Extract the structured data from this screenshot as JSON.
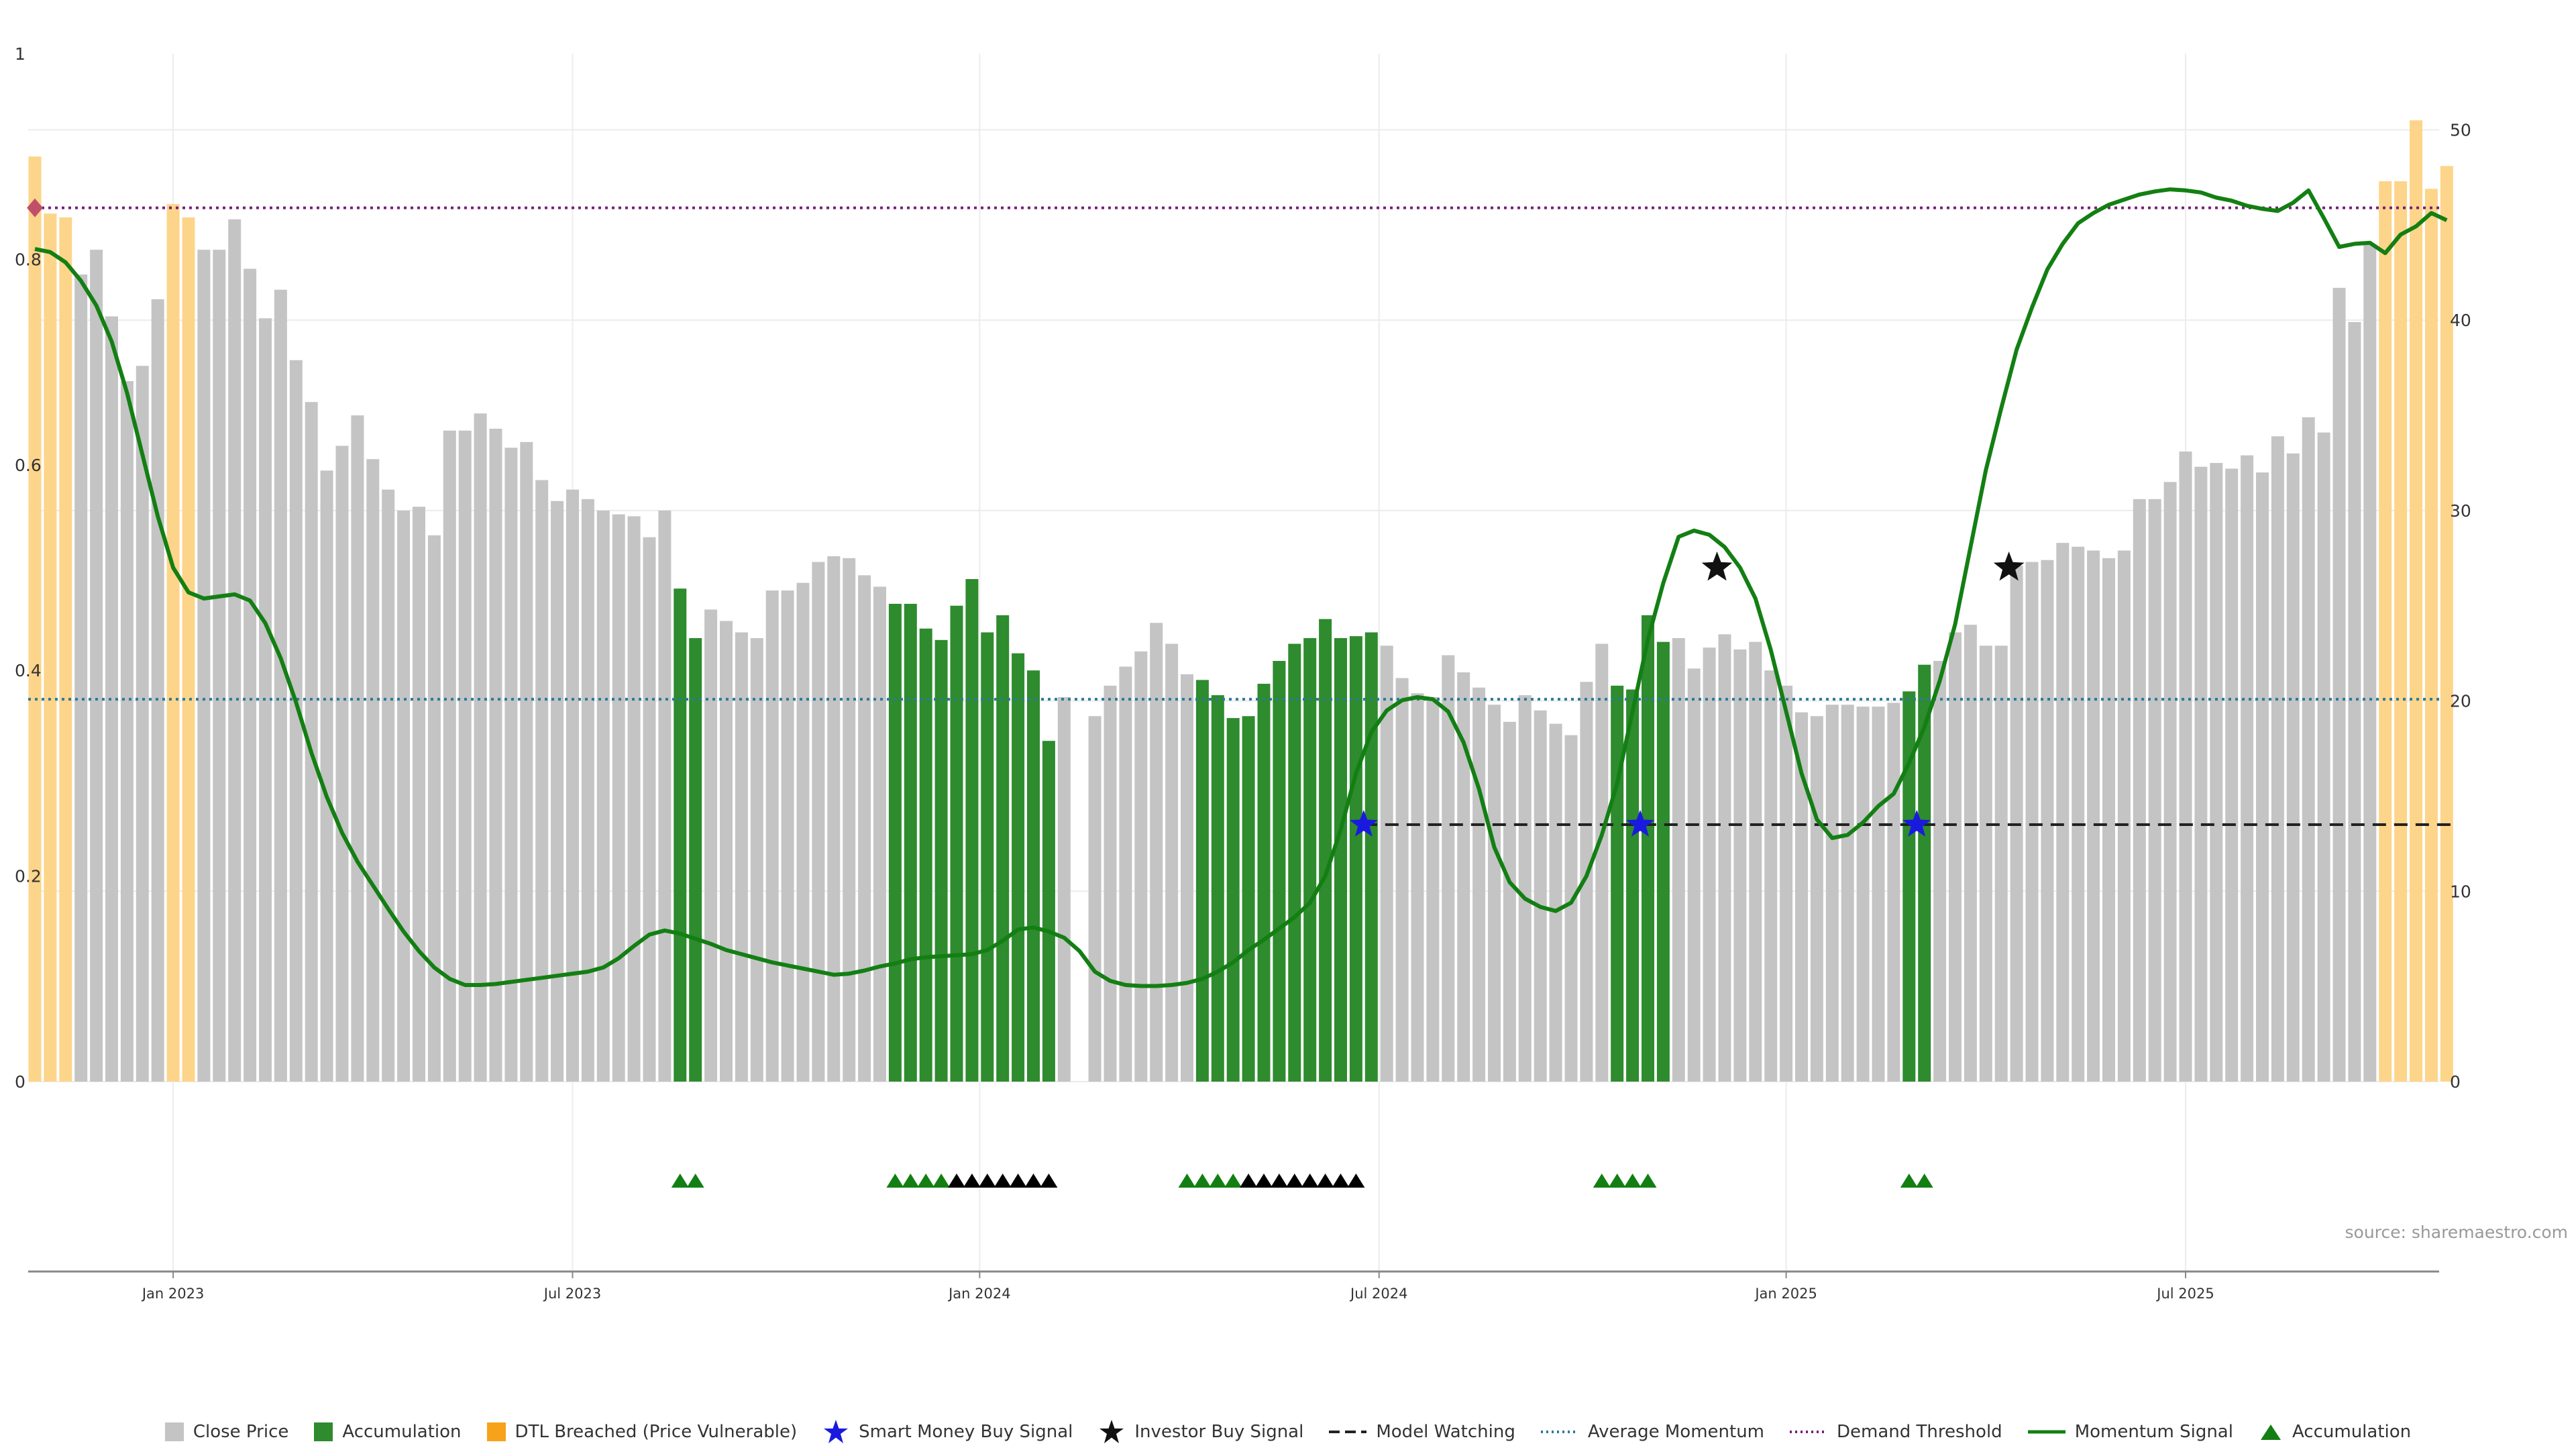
{
  "source_note": "source: sharemaestro.com",
  "legend": {
    "close_price": "Close Price",
    "accumulation": "Accumulation",
    "dtl_breached": "DTL Breached (Price Vulnerable)",
    "smart_money": "Smart Money Buy Signal",
    "investor_buy": "Investor Buy Signal",
    "model_watching": "Model Watching",
    "avg_momentum": "Average Momentum",
    "demand_threshold": "Demand Threshold",
    "momentum_signal": "Momentum Signal",
    "accumulation_marker": "Accumulation"
  },
  "chart_data": {
    "type": "bar",
    "colors": {
      "close": "#c4c4c4",
      "accumulation": "#2e8b2e",
      "dtl": "#fdd58a",
      "momentum": "#137f13",
      "avg_momentum": "#2a7a9a",
      "demand": "#7a1f7a",
      "watching": "#222222",
      "smart_money": "#1a1adf",
      "investor": "#111111",
      "grid": "#ececec"
    },
    "y_left": {
      "ylim": [
        0,
        1
      ],
      "ticks": [
        "0",
        "0.2",
        "0.4",
        "0.6",
        "0.8",
        "1"
      ]
    },
    "y_right": {
      "ylim": [
        0,
        54
      ],
      "ticks": [
        "0",
        "10",
        "20",
        "30",
        "40",
        "50"
      ]
    },
    "x_ticks": [
      {
        "label": "Jan 2023",
        "index": 9
      },
      {
        "label": "Jul 2023",
        "index": 35
      },
      {
        "label": "Jan 2024",
        "index": 61.5
      },
      {
        "label": "Jul 2024",
        "index": 87.5
      },
      {
        "label": "Jan 2025",
        "index": 114
      },
      {
        "label": "Jul 2025",
        "index": 140
      }
    ],
    "bars": [
      {
        "v": 48.6,
        "t": "d"
      },
      {
        "v": 45.6,
        "t": "d"
      },
      {
        "v": 45.4,
        "t": "d"
      },
      {
        "v": 42.4,
        "t": "c"
      },
      {
        "v": 43.7,
        "t": "c"
      },
      {
        "v": 40.2,
        "t": "c"
      },
      {
        "v": 36.8,
        "t": "c"
      },
      {
        "v": 37.6,
        "t": "c"
      },
      {
        "v": 41.1,
        "t": "c"
      },
      {
        "v": 46.1,
        "t": "d"
      },
      {
        "v": 45.4,
        "t": "d"
      },
      {
        "v": 43.7,
        "t": "c"
      },
      {
        "v": 43.7,
        "t": "c"
      },
      {
        "v": 45.3,
        "t": "c"
      },
      {
        "v": 42.7,
        "t": "c"
      },
      {
        "v": 40.1,
        "t": "c"
      },
      {
        "v": 41.6,
        "t": "c"
      },
      {
        "v": 37.9,
        "t": "c"
      },
      {
        "v": 35.7,
        "t": "c"
      },
      {
        "v": 32.1,
        "t": "c"
      },
      {
        "v": 33.4,
        "t": "c"
      },
      {
        "v": 35.0,
        "t": "c"
      },
      {
        "v": 32.7,
        "t": "c"
      },
      {
        "v": 31.1,
        "t": "c"
      },
      {
        "v": 30.0,
        "t": "c"
      },
      {
        "v": 30.2,
        "t": "c"
      },
      {
        "v": 28.7,
        "t": "c"
      },
      {
        "v": 34.2,
        "t": "c"
      },
      {
        "v": 34.2,
        "t": "c"
      },
      {
        "v": 35.1,
        "t": "c"
      },
      {
        "v": 34.3,
        "t": "c"
      },
      {
        "v": 33.3,
        "t": "c"
      },
      {
        "v": 33.6,
        "t": "c"
      },
      {
        "v": 31.6,
        "t": "c"
      },
      {
        "v": 30.5,
        "t": "c"
      },
      {
        "v": 31.1,
        "t": "c"
      },
      {
        "v": 30.6,
        "t": "c"
      },
      {
        "v": 30.0,
        "t": "c"
      },
      {
        "v": 29.8,
        "t": "c"
      },
      {
        "v": 29.7,
        "t": "c"
      },
      {
        "v": 28.6,
        "t": "c"
      },
      {
        "v": 30.0,
        "t": "c"
      },
      {
        "v": 25.9,
        "t": "a"
      },
      {
        "v": 23.3,
        "t": "a"
      },
      {
        "v": 24.8,
        "t": "c"
      },
      {
        "v": 24.2,
        "t": "c"
      },
      {
        "v": 23.6,
        "t": "c"
      },
      {
        "v": 23.3,
        "t": "c"
      },
      {
        "v": 25.8,
        "t": "c"
      },
      {
        "v": 25.8,
        "t": "c"
      },
      {
        "v": 26.2,
        "t": "c"
      },
      {
        "v": 27.3,
        "t": "c"
      },
      {
        "v": 27.6,
        "t": "c"
      },
      {
        "v": 27.5,
        "t": "c"
      },
      {
        "v": 26.6,
        "t": "c"
      },
      {
        "v": 26.0,
        "t": "c"
      },
      {
        "v": 25.1,
        "t": "a"
      },
      {
        "v": 25.1,
        "t": "a"
      },
      {
        "v": 23.8,
        "t": "a"
      },
      {
        "v": 23.2,
        "t": "a"
      },
      {
        "v": 25.0,
        "t": "a"
      },
      {
        "v": 26.4,
        "t": "a"
      },
      {
        "v": 23.6,
        "t": "a"
      },
      {
        "v": 24.5,
        "t": "a"
      },
      {
        "v": 22.5,
        "t": "a"
      },
      {
        "v": 21.6,
        "t": "a"
      },
      {
        "v": 17.9,
        "t": "a"
      },
      {
        "v": 20.2,
        "t": "c"
      },
      {
        "v": 0,
        "t": "c"
      },
      {
        "v": 19.2,
        "t": "c"
      },
      {
        "v": 20.8,
        "t": "c"
      },
      {
        "v": 21.8,
        "t": "c"
      },
      {
        "v": 22.6,
        "t": "c"
      },
      {
        "v": 24.1,
        "t": "c"
      },
      {
        "v": 23.0,
        "t": "c"
      },
      {
        "v": 21.4,
        "t": "c"
      },
      {
        "v": 21.1,
        "t": "a"
      },
      {
        "v": 20.3,
        "t": "a"
      },
      {
        "v": 19.1,
        "t": "a"
      },
      {
        "v": 19.2,
        "t": "a"
      },
      {
        "v": 20.9,
        "t": "a"
      },
      {
        "v": 22.1,
        "t": "a"
      },
      {
        "v": 23.0,
        "t": "a"
      },
      {
        "v": 23.3,
        "t": "a"
      },
      {
        "v": 24.3,
        "t": "a"
      },
      {
        "v": 23.3,
        "t": "a"
      },
      {
        "v": 23.4,
        "t": "a"
      },
      {
        "v": 23.6,
        "t": "a"
      },
      {
        "v": 22.9,
        "t": "c"
      },
      {
        "v": 21.2,
        "t": "c"
      },
      {
        "v": 20.4,
        "t": "c"
      },
      {
        "v": 20.2,
        "t": "c"
      },
      {
        "v": 22.4,
        "t": "c"
      },
      {
        "v": 21.5,
        "t": "c"
      },
      {
        "v": 20.7,
        "t": "c"
      },
      {
        "v": 19.8,
        "t": "c"
      },
      {
        "v": 18.9,
        "t": "c"
      },
      {
        "v": 20.3,
        "t": "c"
      },
      {
        "v": 19.5,
        "t": "c"
      },
      {
        "v": 18.8,
        "t": "c"
      },
      {
        "v": 18.2,
        "t": "c"
      },
      {
        "v": 21.0,
        "t": "c"
      },
      {
        "v": 23.0,
        "t": "c"
      },
      {
        "v": 20.8,
        "t": "a"
      },
      {
        "v": 20.6,
        "t": "a"
      },
      {
        "v": 24.5,
        "t": "a"
      },
      {
        "v": 23.1,
        "t": "a"
      },
      {
        "v": 23.3,
        "t": "c"
      },
      {
        "v": 21.7,
        "t": "c"
      },
      {
        "v": 22.8,
        "t": "c"
      },
      {
        "v": 23.5,
        "t": "c"
      },
      {
        "v": 22.7,
        "t": "c"
      },
      {
        "v": 23.1,
        "t": "c"
      },
      {
        "v": 21.6,
        "t": "c"
      },
      {
        "v": 20.8,
        "t": "c"
      },
      {
        "v": 19.4,
        "t": "c"
      },
      {
        "v": 19.2,
        "t": "c"
      },
      {
        "v": 19.8,
        "t": "c"
      },
      {
        "v": 19.8,
        "t": "c"
      },
      {
        "v": 19.7,
        "t": "c"
      },
      {
        "v": 19.7,
        "t": "c"
      },
      {
        "v": 19.9,
        "t": "c"
      },
      {
        "v": 20.5,
        "t": "a"
      },
      {
        "v": 21.9,
        "t": "a"
      },
      {
        "v": 22.1,
        "t": "c"
      },
      {
        "v": 23.6,
        "t": "c"
      },
      {
        "v": 24.0,
        "t": "c"
      },
      {
        "v": 22.9,
        "t": "c"
      },
      {
        "v": 22.9,
        "t": "c"
      },
      {
        "v": 27.1,
        "t": "c"
      },
      {
        "v": 27.3,
        "t": "c"
      },
      {
        "v": 27.4,
        "t": "c"
      },
      {
        "v": 28.3,
        "t": "c"
      },
      {
        "v": 28.1,
        "t": "c"
      },
      {
        "v": 27.9,
        "t": "c"
      },
      {
        "v": 27.5,
        "t": "c"
      },
      {
        "v": 27.9,
        "t": "c"
      },
      {
        "v": 30.6,
        "t": "c"
      },
      {
        "v": 30.6,
        "t": "c"
      },
      {
        "v": 31.5,
        "t": "c"
      },
      {
        "v": 33.1,
        "t": "c"
      },
      {
        "v": 32.3,
        "t": "c"
      },
      {
        "v": 32.5,
        "t": "c"
      },
      {
        "v": 32.2,
        "t": "c"
      },
      {
        "v": 32.9,
        "t": "c"
      },
      {
        "v": 32.0,
        "t": "c"
      },
      {
        "v": 33.9,
        "t": "c"
      },
      {
        "v": 33.0,
        "t": "c"
      },
      {
        "v": 34.9,
        "t": "c"
      },
      {
        "v": 34.1,
        "t": "c"
      },
      {
        "v": 41.7,
        "t": "c"
      },
      {
        "v": 39.9,
        "t": "c"
      },
      {
        "v": 44.0,
        "t": "c"
      },
      {
        "v": 47.3,
        "t": "d"
      },
      {
        "v": 47.3,
        "t": "d"
      },
      {
        "v": 50.5,
        "t": "d"
      },
      {
        "v": 46.9,
        "t": "d"
      },
      {
        "v": 48.1,
        "t": "d"
      }
    ],
    "momentum_signal": [
      [
        0,
        0.81
      ],
      [
        1,
        0.807
      ],
      [
        2,
        0.797
      ],
      [
        3,
        0.779
      ],
      [
        4,
        0.755
      ],
      [
        5,
        0.72
      ],
      [
        6,
        0.67
      ],
      [
        7,
        0.61
      ],
      [
        8,
        0.55
      ],
      [
        9,
        0.5
      ],
      [
        10,
        0.476
      ],
      [
        11,
        0.47
      ],
      [
        12,
        0.472
      ],
      [
        13,
        0.474
      ],
      [
        14,
        0.468
      ],
      [
        15,
        0.446
      ],
      [
        16,
        0.412
      ],
      [
        17,
        0.369
      ],
      [
        18,
        0.32
      ],
      [
        19,
        0.277
      ],
      [
        20,
        0.242
      ],
      [
        21,
        0.214
      ],
      [
        22,
        0.191
      ],
      [
        23,
        0.168
      ],
      [
        24,
        0.146
      ],
      [
        25,
        0.127
      ],
      [
        26,
        0.111
      ],
      [
        27,
        0.1
      ],
      [
        28,
        0.094
      ],
      [
        29,
        0.094
      ],
      [
        30,
        0.095
      ],
      [
        31,
        0.097
      ],
      [
        32,
        0.099
      ],
      [
        33,
        0.101
      ],
      [
        34,
        0.103
      ],
      [
        35,
        0.105
      ],
      [
        36,
        0.107
      ],
      [
        37,
        0.111
      ],
      [
        38,
        0.12
      ],
      [
        39,
        0.132
      ],
      [
        40,
        0.143
      ],
      [
        41,
        0.147
      ],
      [
        42,
        0.144
      ],
      [
        43,
        0.139
      ],
      [
        44,
        0.134
      ],
      [
        45,
        0.128
      ],
      [
        46,
        0.124
      ],
      [
        47,
        0.12
      ],
      [
        48,
        0.116
      ],
      [
        49,
        0.113
      ],
      [
        50,
        0.11
      ],
      [
        51,
        0.107
      ],
      [
        52,
        0.104
      ],
      [
        53,
        0.105
      ],
      [
        54,
        0.108
      ],
      [
        55,
        0.112
      ],
      [
        56,
        0.115
      ],
      [
        57,
        0.119
      ],
      [
        58,
        0.121
      ],
      [
        59,
        0.122
      ],
      [
        60,
        0.123
      ],
      [
        61,
        0.124
      ],
      [
        62,
        0.128
      ],
      [
        63,
        0.137
      ],
      [
        64,
        0.148
      ],
      [
        65,
        0.15
      ],
      [
        66,
        0.146
      ],
      [
        67,
        0.14
      ],
      [
        68,
        0.127
      ],
      [
        69,
        0.107
      ],
      [
        70,
        0.098
      ],
      [
        71,
        0.094
      ],
      [
        72,
        0.093
      ],
      [
        73,
        0.093
      ],
      [
        74,
        0.094
      ],
      [
        75,
        0.096
      ],
      [
        76,
        0.1
      ],
      [
        77,
        0.107
      ],
      [
        78,
        0.116
      ],
      [
        79,
        0.128
      ],
      [
        80,
        0.138
      ],
      [
        81,
        0.149
      ],
      [
        82,
        0.16
      ],
      [
        83,
        0.174
      ],
      [
        84,
        0.2
      ],
      [
        85,
        0.245
      ],
      [
        86,
        0.3
      ],
      [
        87,
        0.34
      ],
      [
        88,
        0.361
      ],
      [
        89,
        0.371
      ],
      [
        90,
        0.374
      ],
      [
        91,
        0.372
      ],
      [
        92,
        0.36
      ],
      [
        93,
        0.33
      ],
      [
        94,
        0.285
      ],
      [
        95,
        0.228
      ],
      [
        96,
        0.194
      ],
      [
        97,
        0.178
      ],
      [
        98,
        0.17
      ],
      [
        99,
        0.166
      ],
      [
        100,
        0.174
      ],
      [
        101,
        0.2
      ],
      [
        102,
        0.24
      ],
      [
        103,
        0.29
      ],
      [
        104,
        0.36
      ],
      [
        105,
        0.43
      ],
      [
        106,
        0.485
      ],
      [
        107,
        0.53
      ],
      [
        108,
        0.536
      ],
      [
        109,
        0.532
      ],
      [
        110,
        0.52
      ],
      [
        111,
        0.5
      ],
      [
        112,
        0.47
      ],
      [
        113,
        0.42
      ],
      [
        114,
        0.36
      ],
      [
        115,
        0.3
      ],
      [
        116,
        0.255
      ],
      [
        117,
        0.237
      ],
      [
        118,
        0.24
      ],
      [
        119,
        0.252
      ],
      [
        120,
        0.268
      ],
      [
        121,
        0.28
      ],
      [
        122,
        0.31
      ],
      [
        123,
        0.345
      ],
      [
        124,
        0.39
      ],
      [
        125,
        0.445
      ],
      [
        126,
        0.52
      ],
      [
        127,
        0.595
      ],
      [
        128,
        0.655
      ],
      [
        129,
        0.712
      ],
      [
        130,
        0.753
      ],
      [
        131,
        0.79
      ],
      [
        132,
        0.815
      ],
      [
        133,
        0.835
      ],
      [
        134,
        0.845
      ],
      [
        135,
        0.853
      ],
      [
        136,
        0.858
      ],
      [
        137,
        0.863
      ],
      [
        138,
        0.866
      ],
      [
        139,
        0.868
      ],
      [
        140,
        0.867
      ],
      [
        141,
        0.865
      ],
      [
        142,
        0.86
      ],
      [
        143,
        0.857
      ],
      [
        144,
        0.852
      ],
      [
        145,
        0.849
      ],
      [
        146,
        0.847
      ],
      [
        147,
        0.855
      ],
      [
        148,
        0.867
      ],
      [
        149,
        0.84
      ],
      [
        150,
        0.812
      ],
      [
        151,
        0.815
      ],
      [
        152,
        0.816
      ],
      [
        153,
        0.806
      ],
      [
        154,
        0.824
      ],
      [
        155,
        0.832
      ],
      [
        156,
        0.845
      ],
      [
        157,
        0.838
      ]
    ],
    "average_momentum": 0.372,
    "demand_threshold": 0.85,
    "model_watching": {
      "from": 86.5,
      "to": 157.3,
      "y": 0.25
    },
    "smart_money_signals": [
      [
        86.5,
        0.25
      ],
      [
        104.5,
        0.25
      ],
      [
        122.5,
        0.25
      ]
    ],
    "investor_signals": [
      [
        109.5,
        0.5
      ],
      [
        128.5,
        0.5
      ]
    ],
    "demand_marker": [
      0,
      0.85
    ],
    "accumulation_markers": {
      "green": [
        42,
        43,
        56,
        57,
        58,
        59,
        75,
        76,
        77,
        78,
        102,
        103,
        104,
        105,
        122,
        123
      ],
      "black": [
        60,
        61,
        62,
        63,
        64,
        65,
        66,
        79,
        80,
        81,
        82,
        83,
        84,
        85,
        86
      ]
    }
  }
}
